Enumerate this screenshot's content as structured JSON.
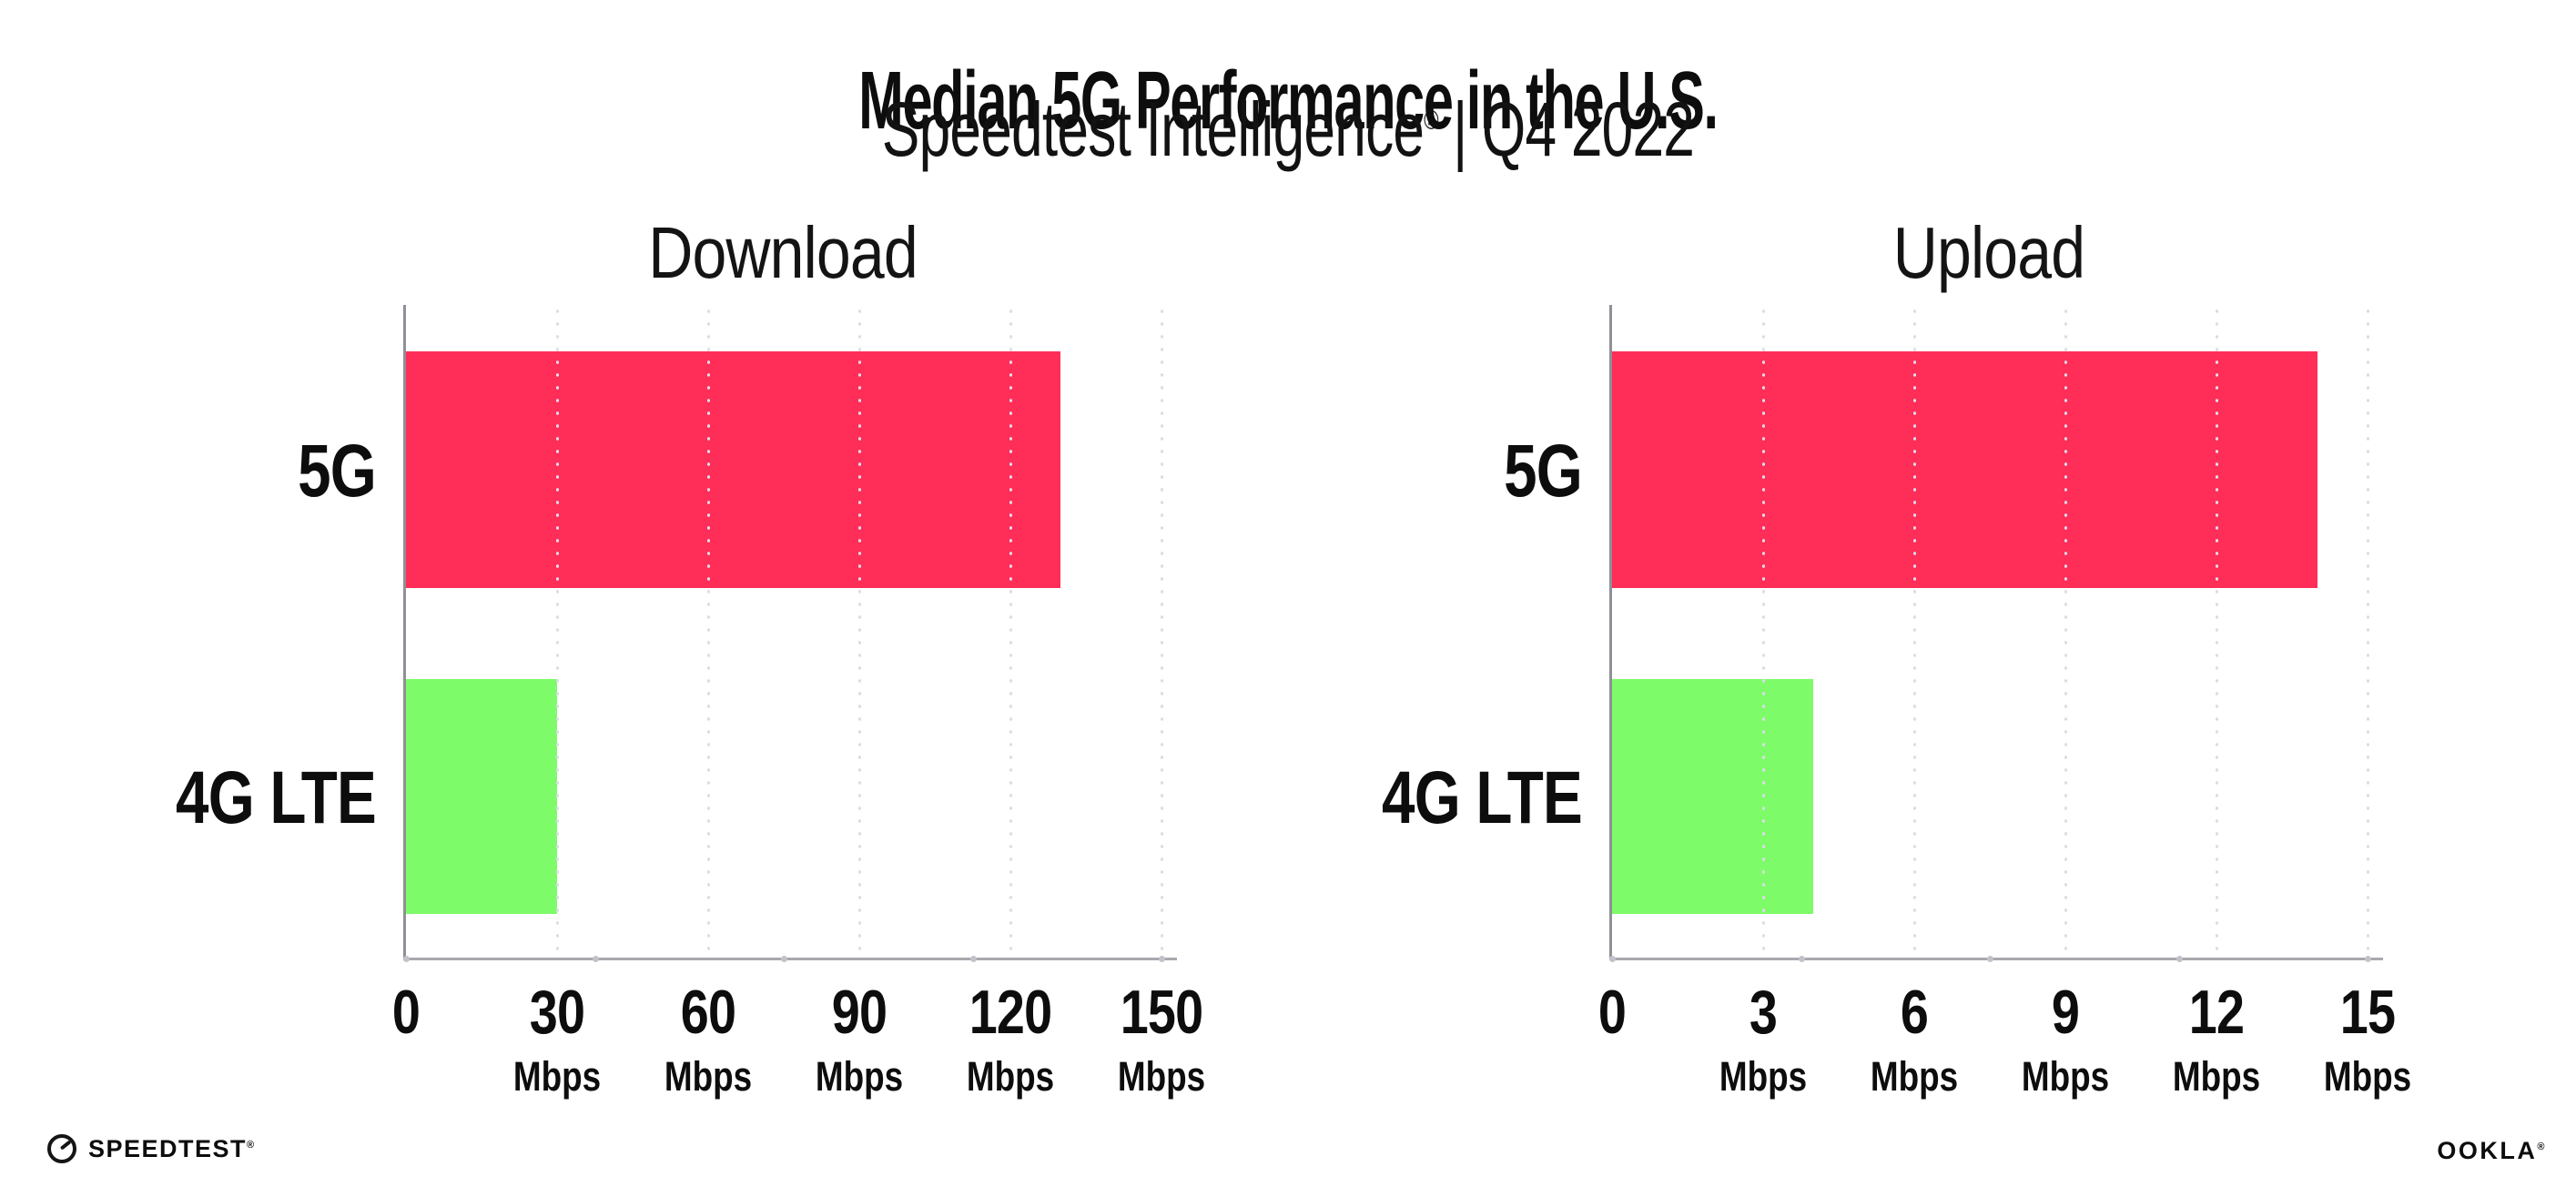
{
  "header": {
    "title": "Median 5G Performance in the U.S.",
    "subtitle_brand": "Speedtest Intelligence",
    "subtitle_reg": "®",
    "subtitle_sep": "|",
    "subtitle_period": "Q4 2022"
  },
  "chart_data": [
    {
      "type": "bar",
      "orientation": "horizontal",
      "title": "Download",
      "categories": [
        "5G",
        "4G LTE"
      ],
      "values": [
        130,
        30
      ],
      "unit": "Mbps",
      "xlim": [
        0,
        150
      ],
      "xticks": [
        0,
        30,
        60,
        90,
        120,
        150
      ],
      "grid": "dotted-vertical",
      "legend": "none"
    },
    {
      "type": "bar",
      "orientation": "horizontal",
      "title": "Upload",
      "categories": [
        "5G",
        "4G LTE"
      ],
      "values": [
        14,
        4
      ],
      "unit": "Mbps",
      "xlim": [
        0,
        15
      ],
      "xticks": [
        0,
        3,
        6,
        9,
        12,
        15
      ],
      "grid": "dotted-vertical",
      "legend": "none"
    }
  ],
  "colors": {
    "bar_5g": "#fe2e59",
    "bar_4g_lte": "#7efb69",
    "axis": "#9b9ba1",
    "gridline": "#dcdce8",
    "text": "#0d0d0d",
    "background": "#ffffff"
  },
  "footer": {
    "speedtest_text": "SPEEDTEST",
    "speedtest_reg": "®",
    "ookla_text": "OOKLA",
    "ookla_reg": "®"
  }
}
